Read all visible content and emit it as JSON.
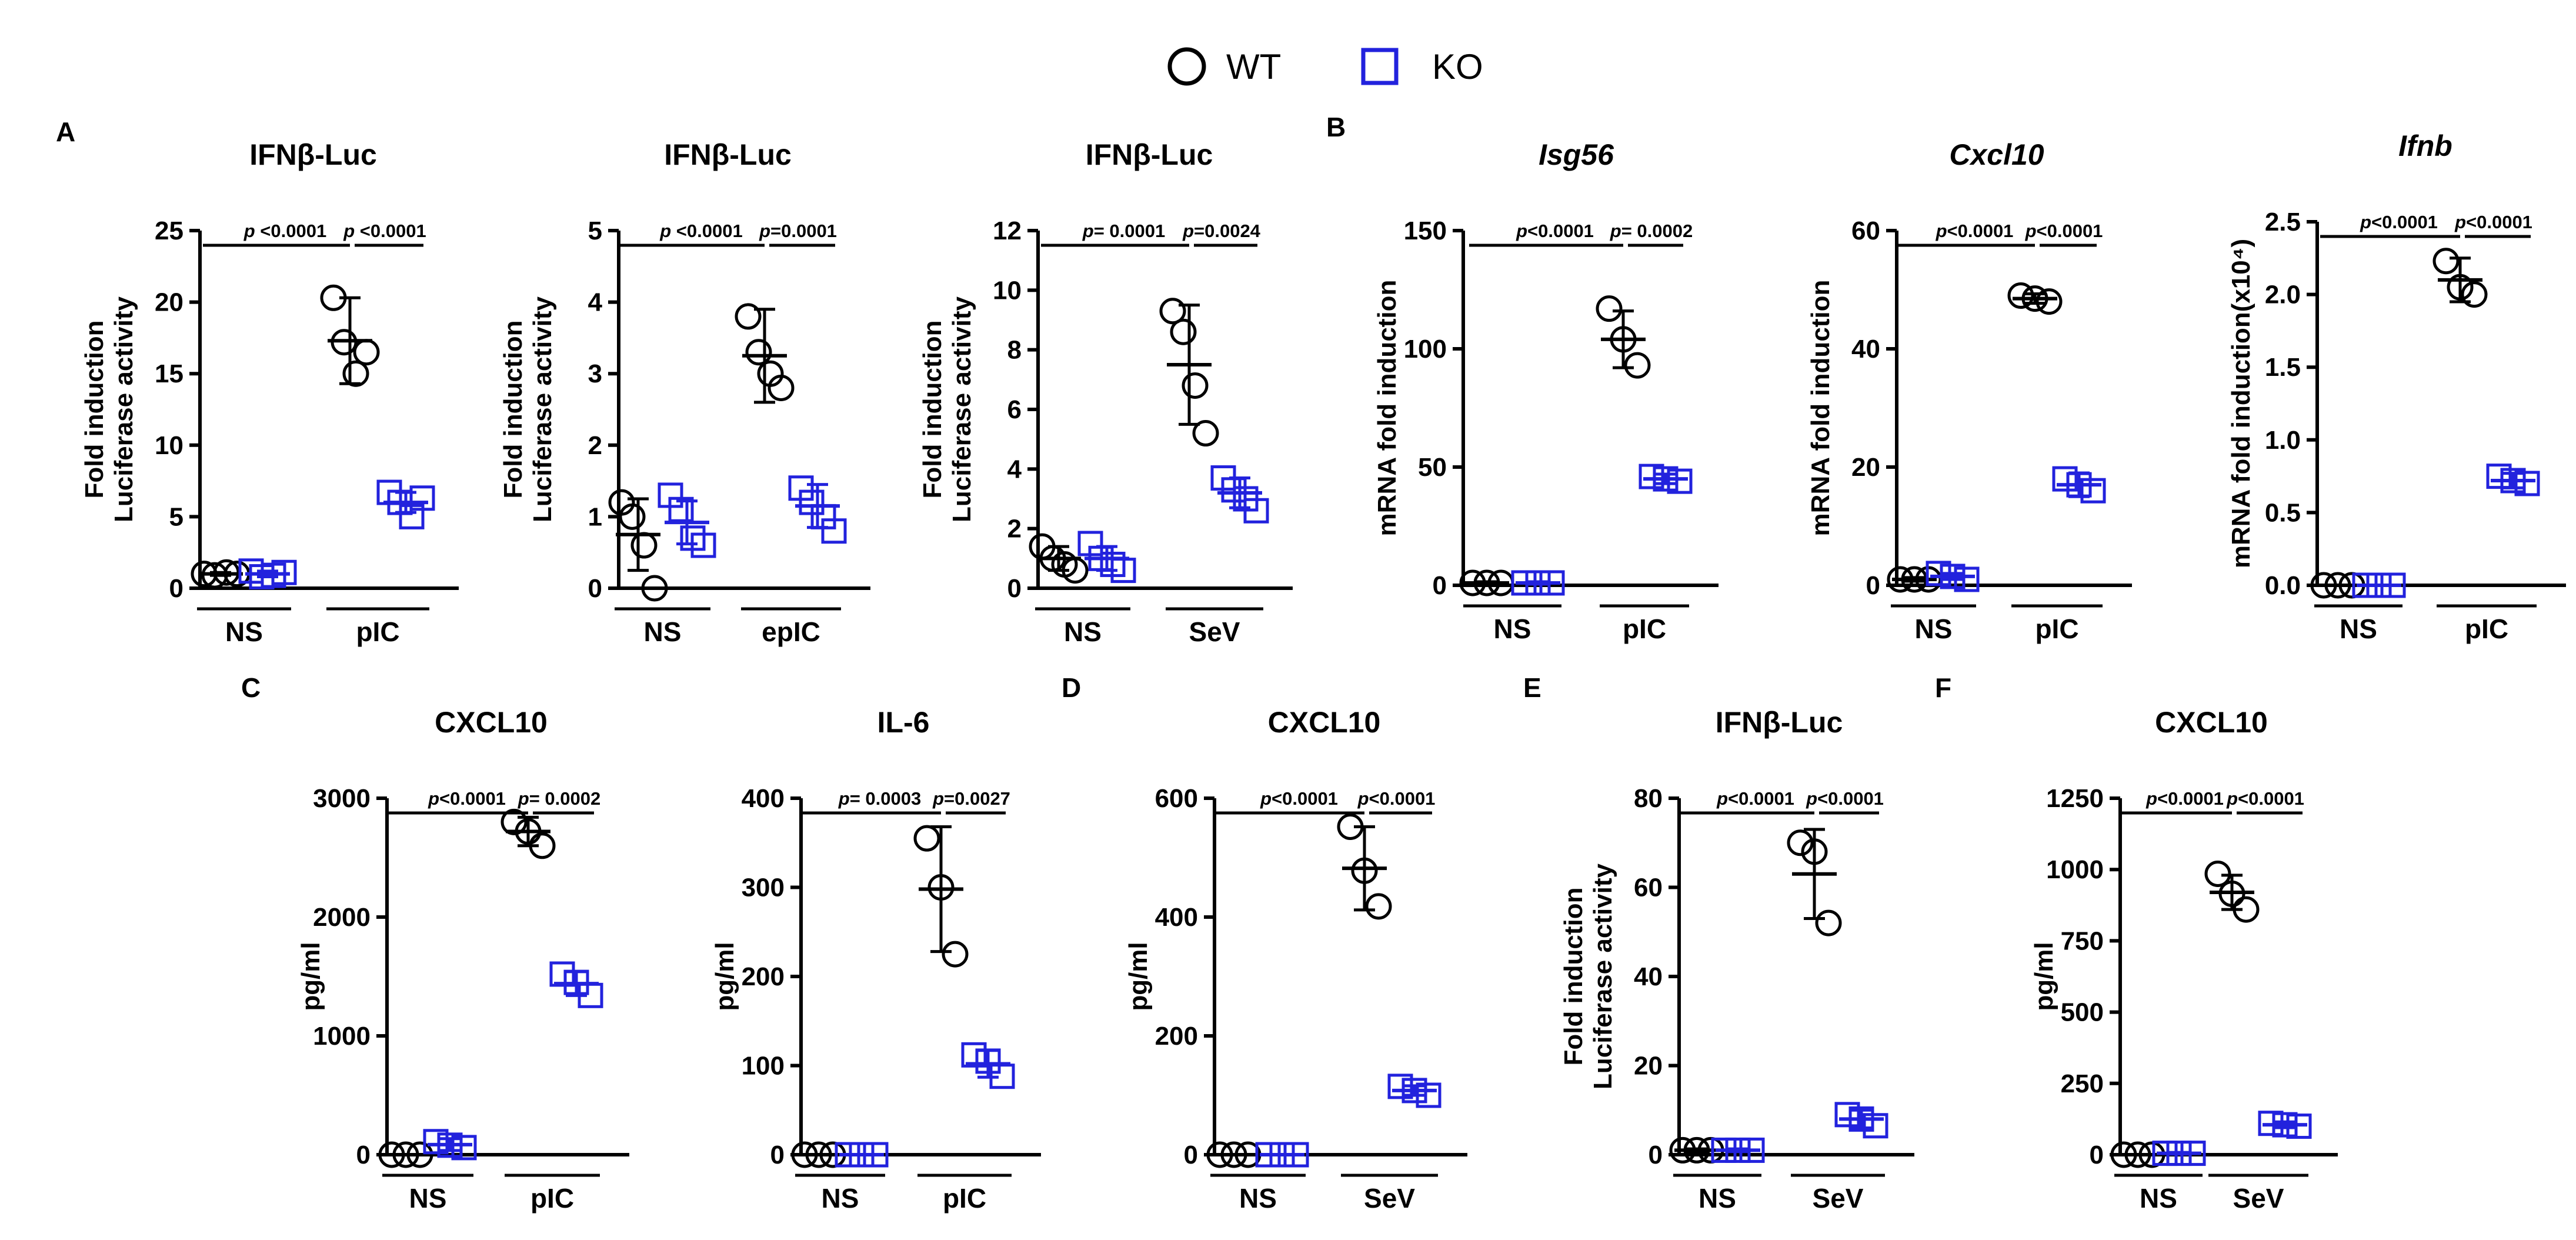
{
  "legend": {
    "items": [
      {
        "label": "WT",
        "marker": "circle",
        "color": "#000000"
      },
      {
        "label": "KO",
        "marker": "square",
        "color": "#2222dd"
      }
    ]
  },
  "chart_data": [
    {
      "panel": "A",
      "type": "scatter",
      "title": "IFNβ-Luc",
      "ylabel": [
        "Fold induction",
        "Luciferase activity"
      ],
      "ylim": [
        0,
        25
      ],
      "yticks": [
        "0",
        "5",
        "10",
        "15",
        "20",
        "25"
      ],
      "groups": [
        "NS",
        "pIC"
      ],
      "series": [
        {
          "name": "WT",
          "group": "NS",
          "points": [
            1.0,
            0.9,
            1.1,
            1.0
          ],
          "mean": 1.0,
          "sd": 0.1
        },
        {
          "name": "KO",
          "group": "NS",
          "points": [
            1.2,
            0.8,
            0.9,
            1.1
          ],
          "mean": 1.0,
          "sd": 0.2
        },
        {
          "name": "WT",
          "group": "pIC",
          "points": [
            20.3,
            17.2,
            15.0,
            16.5
          ],
          "mean": 17.3,
          "sd": 3.0
        },
        {
          "name": "KO",
          "group": "pIC",
          "points": [
            6.7,
            6.0,
            5.0,
            6.3
          ],
          "mean": 6.0,
          "sd": 0.7
        }
      ],
      "pvalues": [
        {
          "label": "p <0.0001",
          "italic_p": true,
          "span": "wide"
        },
        {
          "label": "p <0.0001",
          "italic_p": true,
          "span": "narrow"
        }
      ]
    },
    {
      "panel": "",
      "type": "scatter",
      "title": "IFNβ-Luc",
      "ylabel": [
        "Fold induction",
        "Luciferase activity"
      ],
      "ylim": [
        0,
        5
      ],
      "yticks": [
        "0",
        "1",
        "2",
        "3",
        "4",
        "5"
      ],
      "groups": [
        "NS",
        "epIC"
      ],
      "series": [
        {
          "name": "WT",
          "group": "NS",
          "points": [
            1.2,
            1.0,
            0.6,
            0.0
          ],
          "mean": 0.75,
          "sd": 0.5
        },
        {
          "name": "KO",
          "group": "NS",
          "points": [
            1.3,
            1.1,
            0.7,
            0.6
          ],
          "mean": 0.92,
          "sd": 0.3
        },
        {
          "name": "WT",
          "group": "epIC",
          "points": [
            3.8,
            3.3,
            3.0,
            2.8
          ],
          "mean": 3.25,
          "sd": 0.65
        },
        {
          "name": "KO",
          "group": "epIC",
          "points": [
            1.4,
            1.2,
            1.0,
            0.8
          ],
          "mean": 1.15,
          "sd": 0.3
        }
      ],
      "pvalues": [
        {
          "label": "p <0.0001",
          "italic_p": true,
          "span": "wide"
        },
        {
          "label": "p=0.0001",
          "italic_p": true,
          "span": "narrow"
        }
      ]
    },
    {
      "panel": "",
      "type": "scatter",
      "title": "IFNβ-Luc",
      "ylabel": [
        "Fold induction",
        "Luciferase activity"
      ],
      "ylim": [
        0,
        12
      ],
      "yticks": [
        "0",
        "2",
        "4",
        "6",
        "8",
        "10",
        "12"
      ],
      "groups": [
        "NS",
        "SeV"
      ],
      "series": [
        {
          "name": "WT",
          "group": "NS",
          "points": [
            1.4,
            1.0,
            0.8,
            0.6
          ],
          "mean": 1.0,
          "sd": 0.4
        },
        {
          "name": "KO",
          "group": "NS",
          "points": [
            1.5,
            1.0,
            0.8,
            0.6
          ],
          "mean": 1.0,
          "sd": 0.4
        },
        {
          "name": "WT",
          "group": "SeV",
          "points": [
            9.3,
            8.6,
            6.8,
            5.2
          ],
          "mean": 7.5,
          "sd": 2.0
        },
        {
          "name": "KO",
          "group": "SeV",
          "points": [
            3.7,
            3.3,
            3.0,
            2.6
          ],
          "mean": 3.2,
          "sd": 0.5
        }
      ],
      "pvalues": [
        {
          "label": "p= 0.0001",
          "italic_p": true,
          "span": "wide"
        },
        {
          "label": "p=0.0024",
          "italic_p": true,
          "span": "narrow"
        }
      ]
    },
    {
      "panel": "B",
      "type": "scatter",
      "title": "Isg56",
      "title_italic": true,
      "ylabel": [
        "mRNA fold induction"
      ],
      "ylim": [
        0,
        150
      ],
      "yticks": [
        "0",
        "50",
        "100",
        "150"
      ],
      "groups": [
        "NS",
        "pIC"
      ],
      "series": [
        {
          "name": "WT",
          "group": "NS",
          "points": [
            1,
            1,
            1
          ],
          "mean": 1,
          "sd": 0.5
        },
        {
          "name": "KO",
          "group": "NS",
          "points": [
            1,
            1,
            1
          ],
          "mean": 1,
          "sd": 0.5
        },
        {
          "name": "WT",
          "group": "pIC",
          "points": [
            117,
            104,
            93
          ],
          "mean": 104,
          "sd": 12
        },
        {
          "name": "KO",
          "group": "pIC",
          "points": [
            46,
            45,
            44
          ],
          "mean": 45,
          "sd": 2
        }
      ],
      "pvalues": [
        {
          "label": "p<0.0001",
          "italic_p": true,
          "span": "wide"
        },
        {
          "label": "p= 0.0002",
          "italic_p": true,
          "span": "narrow"
        }
      ]
    },
    {
      "panel": "",
      "type": "scatter",
      "title": "Cxcl10",
      "title_italic": true,
      "ylabel": [
        "mRNA fold induction"
      ],
      "ylim": [
        0,
        60
      ],
      "yticks": [
        "0",
        "20",
        "40",
        "60"
      ],
      "groups": [
        "NS",
        "pIC"
      ],
      "series": [
        {
          "name": "WT",
          "group": "NS",
          "points": [
            1,
            1,
            1
          ],
          "mean": 1,
          "sd": 0.3
        },
        {
          "name": "KO",
          "group": "NS",
          "points": [
            2,
            1.5,
            1
          ],
          "mean": 1.5,
          "sd": 0.5
        },
        {
          "name": "WT",
          "group": "pIC",
          "points": [
            49,
            48.5,
            48
          ],
          "mean": 48.5,
          "sd": 0.8
        },
        {
          "name": "KO",
          "group": "pIC",
          "points": [
            18,
            17,
            16
          ],
          "mean": 17,
          "sd": 2
        }
      ],
      "pvalues": [
        {
          "label": "p<0.0001",
          "italic_p": true,
          "span": "wide"
        },
        {
          "label": "p<0.0001",
          "italic_p": true,
          "span": "narrow"
        }
      ]
    },
    {
      "panel": "",
      "type": "scatter",
      "title": "Ifnb",
      "title_italic": true,
      "ylabel": [
        "mRNA fold induction(x10⁴)"
      ],
      "ylim": [
        0,
        2.5
      ],
      "yticks": [
        "0.0",
        "0.5",
        "1.0",
        "1.5",
        "2.0",
        "2.5"
      ],
      "groups": [
        "NS",
        "pIC"
      ],
      "series": [
        {
          "name": "WT",
          "group": "NS",
          "points": [
            0.0,
            0.0,
            0.0
          ],
          "mean": 0.0,
          "sd": 0.0
        },
        {
          "name": "KO",
          "group": "NS",
          "points": [
            0.0,
            0.0,
            0.0
          ],
          "mean": 0.0,
          "sd": 0.0
        },
        {
          "name": "WT",
          "group": "pIC",
          "points": [
            2.23,
            2.05,
            2.0
          ],
          "mean": 2.1,
          "sd": 0.15
        },
        {
          "name": "KO",
          "group": "pIC",
          "points": [
            0.75,
            0.72,
            0.7
          ],
          "mean": 0.72,
          "sd": 0.05
        }
      ],
      "pvalues": [
        {
          "label": "p<0.0001",
          "italic_p": true,
          "span": "wide"
        },
        {
          "label": "p<0.0001",
          "italic_p": true,
          "span": "narrow"
        }
      ]
    },
    {
      "panel": "C",
      "type": "scatter",
      "title": "CXCL10",
      "ylabel": [
        "pg/ml"
      ],
      "ylim": [
        0,
        3000
      ],
      "yticks": [
        "0",
        "1000",
        "2000",
        "3000"
      ],
      "groups": [
        "NS",
        "pIC"
      ],
      "series": [
        {
          "name": "WT",
          "group": "NS",
          "points": [
            0,
            0,
            0
          ],
          "mean": 0,
          "sd": 0
        },
        {
          "name": "KO",
          "group": "NS",
          "points": [
            110,
            80,
            60
          ],
          "mean": 85,
          "sd": 50
        },
        {
          "name": "WT",
          "group": "pIC",
          "points": [
            2800,
            2720,
            2600
          ],
          "mean": 2720,
          "sd": 120
        },
        {
          "name": "KO",
          "group": "pIC",
          "points": [
            1520,
            1450,
            1340
          ],
          "mean": 1440,
          "sd": 100
        }
      ],
      "pvalues": [
        {
          "label": "p<0.0001",
          "italic_p": true,
          "span": "wide"
        },
        {
          "label": "p= 0.0002",
          "italic_p": true,
          "span": "narrow"
        }
      ]
    },
    {
      "panel": "",
      "type": "scatter",
      "title": "IL-6",
      "ylabel": [
        "pg/ml"
      ],
      "ylim": [
        0,
        400
      ],
      "yticks": [
        "0",
        "100",
        "200",
        "300",
        "400"
      ],
      "groups": [
        "NS",
        "pIC"
      ],
      "series": [
        {
          "name": "WT",
          "group": "NS",
          "points": [
            0,
            0,
            0
          ],
          "mean": 0,
          "sd": 0
        },
        {
          "name": "KO",
          "group": "NS",
          "points": [
            0,
            0,
            0
          ],
          "mean": 0,
          "sd": 0
        },
        {
          "name": "WT",
          "group": "pIC",
          "points": [
            355,
            300,
            225
          ],
          "mean": 298,
          "sd": 70
        },
        {
          "name": "KO",
          "group": "pIC",
          "points": [
            112,
            105,
            88
          ],
          "mean": 102,
          "sd": 15
        }
      ],
      "pvalues": [
        {
          "label": "p= 0.0003",
          "italic_p": true,
          "span": "wide"
        },
        {
          "label": "p=0.0027",
          "italic_p": true,
          "span": "narrow"
        }
      ]
    },
    {
      "panel": "D",
      "type": "scatter",
      "title": "CXCL10",
      "ylabel": [
        "pg/ml"
      ],
      "ylim": [
        0,
        600
      ],
      "yticks": [
        "0",
        "200",
        "400",
        "600"
      ],
      "groups": [
        "NS",
        "SeV"
      ],
      "series": [
        {
          "name": "WT",
          "group": "NS",
          "points": [
            0,
            0,
            0
          ],
          "mean": 0,
          "sd": 0
        },
        {
          "name": "KO",
          "group": "NS",
          "points": [
            0,
            0,
            0
          ],
          "mean": 0,
          "sd": 0
        },
        {
          "name": "WT",
          "group": "SeV",
          "points": [
            552,
            478,
            418
          ],
          "mean": 482,
          "sd": 70
        },
        {
          "name": "KO",
          "group": "SeV",
          "points": [
            115,
            108,
            100
          ],
          "mean": 108,
          "sd": 8
        }
      ],
      "pvalues": [
        {
          "label": "p<0.0001",
          "italic_p": true,
          "span": "wide"
        },
        {
          "label": "p<0.0001",
          "italic_p": true,
          "span": "narrow"
        }
      ]
    },
    {
      "panel": "E",
      "type": "scatter",
      "title": "IFNβ-Luc",
      "ylabel": [
        "Fold induction",
        "Luciferase activity"
      ],
      "ylim": [
        0,
        80
      ],
      "yticks": [
        "0",
        "20",
        "40",
        "60",
        "80"
      ],
      "groups": [
        "NS",
        "SeV"
      ],
      "series": [
        {
          "name": "WT",
          "group": "NS",
          "points": [
            1,
            1,
            1
          ],
          "mean": 1,
          "sd": 0.3
        },
        {
          "name": "KO",
          "group": "NS",
          "points": [
            1,
            1,
            1
          ],
          "mean": 1,
          "sd": 0.3
        },
        {
          "name": "WT",
          "group": "SeV",
          "points": [
            70,
            68,
            52
          ],
          "mean": 63,
          "sd": 10
        },
        {
          "name": "KO",
          "group": "SeV",
          "points": [
            9,
            8,
            6.5
          ],
          "mean": 8,
          "sd": 2
        }
      ],
      "pvalues": [
        {
          "label": "p<0.0001",
          "italic_p": true,
          "span": "wide"
        },
        {
          "label": "p<0.0001",
          "italic_p": true,
          "span": "narrow"
        }
      ]
    },
    {
      "panel": "F",
      "type": "scatter",
      "title": "CXCL10",
      "ylabel": [
        "pg/ml"
      ],
      "ylim": [
        0,
        1250
      ],
      "yticks": [
        "0",
        "250",
        "500",
        "750",
        "1000",
        "1250"
      ],
      "groups": [
        "NS",
        "SeV"
      ],
      "series": [
        {
          "name": "WT",
          "group": "NS",
          "points": [
            0,
            0,
            0
          ],
          "mean": 0,
          "sd": 0
        },
        {
          "name": "KO",
          "group": "NS",
          "points": [
            5,
            5,
            5
          ],
          "mean": 5,
          "sd": 3
        },
        {
          "name": "WT",
          "group": "SeV",
          "points": [
            985,
            915,
            860
          ],
          "mean": 920,
          "sd": 60
        },
        {
          "name": "KO",
          "group": "SeV",
          "points": [
            110,
            105,
            100
          ],
          "mean": 105,
          "sd": 10
        }
      ],
      "pvalues": [
        {
          "label": "p<0.0001",
          "italic_p": true,
          "span": "wide"
        },
        {
          "label": "p<0.0001",
          "italic_p": true,
          "span": "narrow"
        }
      ]
    }
  ]
}
